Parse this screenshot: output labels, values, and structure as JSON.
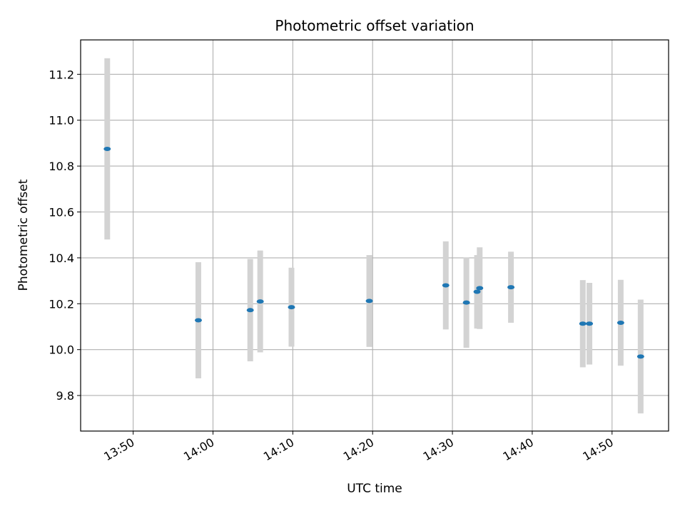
{
  "chart_data": {
    "type": "scatter",
    "title": "Photometric offset variation",
    "xlabel": "UTC time",
    "ylabel": "Photometric offset",
    "x_ticks": [
      "13:50",
      "14:00",
      "14:10",
      "14:20",
      "14:30",
      "14:40",
      "14:50"
    ],
    "y_ticks": [
      9.8,
      10.0,
      10.2,
      10.4,
      10.6,
      10.8,
      11.0,
      11.2
    ],
    "xlim": [
      "13:43:25",
      "14:57:05"
    ],
    "ylim": [
      9.645,
      11.35
    ],
    "grid": true,
    "errorbar_color": "#d3d3d3",
    "marker_color": "#1f77b4",
    "series": [
      {
        "x": [
          "13:46:45",
          "13:58:10",
          "14:04:40",
          "14:05:55",
          "14:09:50",
          "14:19:35",
          "14:29:10",
          "14:31:45",
          "14:33:05",
          "14:33:25",
          "14:37:20",
          "14:46:20",
          "14:47:10",
          "14:51:05",
          "14:53:35"
        ],
        "y": [
          10.875,
          10.128,
          10.172,
          10.21,
          10.185,
          10.212,
          10.28,
          10.205,
          10.252,
          10.268,
          10.272,
          10.113,
          10.113,
          10.117,
          9.97
        ],
        "yerr": [
          0.395,
          0.253,
          0.223,
          0.222,
          0.172,
          0.2,
          0.192,
          0.197,
          0.16,
          0.178,
          0.155,
          0.19,
          0.178,
          0.187,
          0.248
        ]
      }
    ]
  }
}
